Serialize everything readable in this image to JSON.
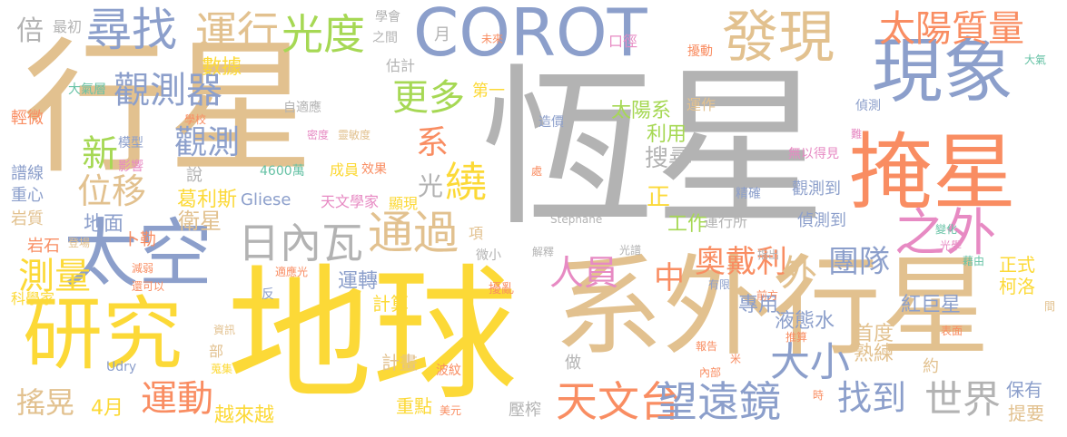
{
  "palette": {
    "gray": "#b3b3b3",
    "tan": "#e2c18f",
    "blue": "#8c9fcb",
    "orange": "#f98d62",
    "yellow": "#fcd937",
    "green": "#a6d854",
    "pink": "#e78ac3",
    "teal": "#66c2a5"
  },
  "words": [
    {
      "text": "恆星",
      "color": "gray"
    },
    {
      "text": "行星",
      "color": "tan"
    },
    {
      "text": "地球",
      "color": "yellow"
    },
    {
      "text": "系外行星",
      "color": "tan"
    },
    {
      "text": "COROT",
      "color": "blue"
    },
    {
      "text": "掩星",
      "color": "orange"
    },
    {
      "text": "現象",
      "color": "blue"
    },
    {
      "text": "太空",
      "color": "blue"
    },
    {
      "text": "研究",
      "color": "yellow"
    },
    {
      "text": "發現",
      "color": "tan"
    },
    {
      "text": "尋找",
      "color": "blue"
    },
    {
      "text": "光度",
      "color": "green"
    },
    {
      "text": "運行",
      "color": "tan"
    },
    {
      "text": "太陽質量",
      "color": "orange"
    },
    {
      "text": "之外",
      "color": "pink"
    },
    {
      "text": "通過",
      "color": "tan"
    },
    {
      "text": "日內瓦",
      "color": "gray"
    },
    {
      "text": "觀測器",
      "color": "blue"
    },
    {
      "text": "更多",
      "color": "green"
    },
    {
      "text": "繞",
      "color": "yellow"
    },
    {
      "text": "系",
      "color": "orange"
    },
    {
      "text": "新",
      "color": "green"
    },
    {
      "text": "位移",
      "color": "tan"
    },
    {
      "text": "觀測",
      "color": "blue"
    },
    {
      "text": "測量",
      "color": "yellow"
    },
    {
      "text": "天文台",
      "color": "orange"
    },
    {
      "text": "望遠鏡",
      "color": "blue"
    },
    {
      "text": "世界",
      "color": "gray"
    },
    {
      "text": "找到",
      "color": "blue"
    },
    {
      "text": "運動",
      "color": "orange"
    },
    {
      "text": "搖晃",
      "color": "tan"
    },
    {
      "text": "大小",
      "color": "blue"
    },
    {
      "text": "奧戴利",
      "color": "orange"
    },
    {
      "text": "團隊",
      "color": "blue"
    },
    {
      "text": "人員",
      "color": "pink"
    },
    {
      "text": "中",
      "color": "orange"
    },
    {
      "text": "外",
      "color": "tan"
    },
    {
      "text": "倍",
      "color": "gray"
    },
    {
      "text": "太陽系",
      "color": "green"
    },
    {
      "text": "搜尋",
      "color": "gray"
    },
    {
      "text": "利用",
      "color": "green"
    },
    {
      "text": "光",
      "color": "gray"
    },
    {
      "text": "正",
      "color": "yellow"
    },
    {
      "text": "工作",
      "color": "green"
    },
    {
      "text": "衛星",
      "color": "tan"
    },
    {
      "text": "葛利斯",
      "color": "yellow"
    },
    {
      "text": "地面",
      "color": "blue"
    },
    {
      "text": "運轉",
      "color": "blue"
    },
    {
      "text": "紅巨星",
      "color": "blue"
    },
    {
      "text": "液態水",
      "color": "blue"
    },
    {
      "text": "首度",
      "color": "tan"
    },
    {
      "text": "熟練",
      "color": "tan"
    },
    {
      "text": "正式",
      "color": "yellow"
    },
    {
      "text": "柯洛",
      "color": "yellow"
    },
    {
      "text": "保有",
      "color": "blue"
    },
    {
      "text": "提要",
      "color": "tan"
    },
    {
      "text": "4月",
      "color": "yellow"
    },
    {
      "text": "越來越",
      "color": "yellow"
    },
    {
      "text": "重點",
      "color": "yellow"
    },
    {
      "text": "計算",
      "color": "yellow"
    },
    {
      "text": "計畫",
      "color": "tan"
    },
    {
      "text": "專用",
      "color": "blue"
    },
    {
      "text": "第一",
      "color": "yellow"
    },
    {
      "text": "數據",
      "color": "yellow"
    },
    {
      "text": "最初",
      "color": "gray"
    },
    {
      "text": "學會",
      "color": "gray"
    },
    {
      "text": "之間",
      "color": "gray"
    },
    {
      "text": "月",
      "color": "gray"
    },
    {
      "text": "估計",
      "color": "gray"
    },
    {
      "text": "未來",
      "color": "orange"
    },
    {
      "text": "口徑",
      "color": "pink"
    },
    {
      "text": "擾動",
      "color": "orange"
    },
    {
      "text": "大氣",
      "color": "teal"
    },
    {
      "text": "運作",
      "color": "tan"
    },
    {
      "text": "造價",
      "color": "blue"
    },
    {
      "text": "自適應",
      "color": "gray"
    },
    {
      "text": "大氣層",
      "color": "teal"
    },
    {
      "text": "輕微",
      "color": "orange"
    },
    {
      "text": "學校",
      "color": "orange"
    },
    {
      "text": "偵測",
      "color": "blue"
    },
    {
      "text": "密度",
      "color": "pink"
    },
    {
      "text": "靈敏度",
      "color": "tan"
    },
    {
      "text": "難",
      "color": "pink"
    },
    {
      "text": "模型",
      "color": "blue"
    },
    {
      "text": "影響",
      "color": "pink"
    },
    {
      "text": "說",
      "color": "gray"
    },
    {
      "text": "譜線",
      "color": "blue"
    },
    {
      "text": "重心",
      "color": "blue"
    },
    {
      "text": "岩質",
      "color": "tan"
    },
    {
      "text": "岩石",
      "color": "orange"
    },
    {
      "text": "卜勒",
      "color": "orange"
    },
    {
      "text": "登場",
      "color": "tan"
    },
    {
      "text": "4600萬",
      "color": "teal"
    },
    {
      "text": "成員",
      "color": "yellow"
    },
    {
      "text": "效果",
      "color": "orange"
    },
    {
      "text": "無以得見",
      "color": "pink"
    },
    {
      "text": "處",
      "color": "orange"
    },
    {
      "text": "精確",
      "color": "blue"
    },
    {
      "text": "觀測到",
      "color": "blue"
    },
    {
      "text": "偵測到",
      "color": "blue"
    },
    {
      "text": "運行所",
      "color": "gray"
    },
    {
      "text": "Gliese",
      "color": "blue"
    },
    {
      "text": "天文學家",
      "color": "pink"
    },
    {
      "text": "顯現",
      "color": "yellow"
    },
    {
      "text": "Stephane",
      "color": "gray"
    },
    {
      "text": "項",
      "color": "tan"
    },
    {
      "text": "微小",
      "color": "gray"
    },
    {
      "text": "解釋",
      "color": "gray"
    },
    {
      "text": "光譜",
      "color": "gray"
    },
    {
      "text": "指出",
      "color": "gray"
    },
    {
      "text": "藉由",
      "color": "teal"
    },
    {
      "text": "光學",
      "color": "pink"
    },
    {
      "text": "變化",
      "color": "teal"
    },
    {
      "text": "減弱",
      "color": "orange"
    },
    {
      "text": "還可以",
      "color": "orange"
    },
    {
      "text": "科學家",
      "color": "yellow"
    },
    {
      "text": "適應光",
      "color": "orange"
    },
    {
      "text": "反",
      "color": "blue"
    },
    {
      "text": "擾亂",
      "color": "orange"
    },
    {
      "text": "有限",
      "color": "blue"
    },
    {
      "text": "前方",
      "color": "orange"
    },
    {
      "text": "間",
      "color": "tan"
    },
    {
      "text": "表面",
      "color": "orange"
    },
    {
      "text": "推算",
      "color": "orange"
    },
    {
      "text": "報告",
      "color": "orange"
    },
    {
      "text": "米",
      "color": "orange"
    },
    {
      "text": "內部",
      "color": "orange"
    },
    {
      "text": "資訊",
      "color": "tan"
    },
    {
      "text": "部",
      "color": "tan"
    },
    {
      "text": "蒐集",
      "color": "yellow"
    },
    {
      "text": "Udry",
      "color": "blue"
    },
    {
      "text": "波紋",
      "color": "orange"
    },
    {
      "text": "做",
      "color": "gray"
    },
    {
      "text": "美元",
      "color": "orange"
    },
    {
      "text": "壓榨",
      "color": "gray"
    },
    {
      "text": "時",
      "color": "orange"
    },
    {
      "text": "約",
      "color": "tan"
    }
  ]
}
